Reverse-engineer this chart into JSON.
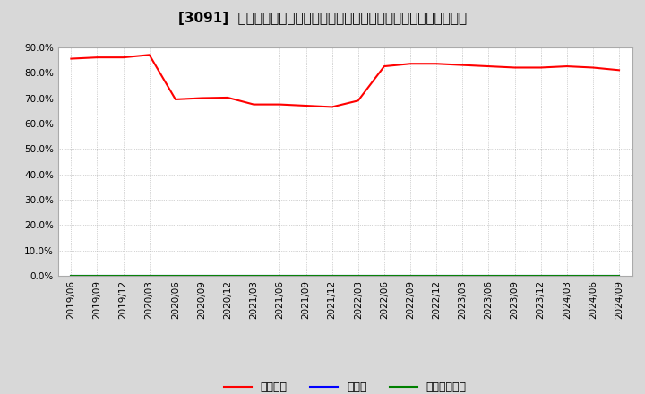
{
  "title": "[3091]  自己資本、のれん、繰延税金資産の総資産に対する比率の推移",
  "x_labels": [
    "2019/06",
    "2019/09",
    "2019/12",
    "2020/03",
    "2020/06",
    "2020/09",
    "2020/12",
    "2021/03",
    "2021/06",
    "2021/09",
    "2021/12",
    "2022/03",
    "2022/06",
    "2022/09",
    "2022/12",
    "2023/03",
    "2023/06",
    "2023/09",
    "2023/12",
    "2024/03",
    "2024/06",
    "2024/09"
  ],
  "equity_ratio": [
    85.5,
    86.0,
    86.0,
    87.0,
    69.5,
    70.0,
    70.2,
    67.5,
    67.5,
    67.0,
    66.5,
    69.0,
    82.5,
    83.5,
    83.5,
    83.0,
    82.5,
    82.0,
    82.0,
    82.5,
    82.0,
    81.0
  ],
  "noren_ratio": [
    0,
    0,
    0,
    0,
    0,
    0,
    0,
    0,
    0,
    0,
    0,
    0,
    0,
    0,
    0,
    0,
    0,
    0,
    0,
    0,
    0,
    0
  ],
  "deferred_ratio": [
    0,
    0,
    0,
    0,
    0,
    0,
    0,
    0,
    0,
    0,
    0,
    0,
    0,
    0,
    0,
    0,
    0,
    0,
    0,
    0,
    0,
    0
  ],
  "equity_color": "#ff0000",
  "noren_color": "#0000ff",
  "deferred_color": "#008000",
  "outer_bg_color": "#d8d8d8",
  "plot_bg_color": "#ffffff",
  "ylim": [
    0.0,
    90.0
  ],
  "yticks": [
    0,
    10,
    20,
    30,
    40,
    50,
    60,
    70,
    80,
    90
  ],
  "legend_labels": [
    "自己資本",
    "のれん",
    "繰延税金資産"
  ],
  "title_fontsize": 11,
  "tick_fontsize": 7.5,
  "grid_color": "#aaaaaa",
  "spine_color": "#aaaaaa"
}
